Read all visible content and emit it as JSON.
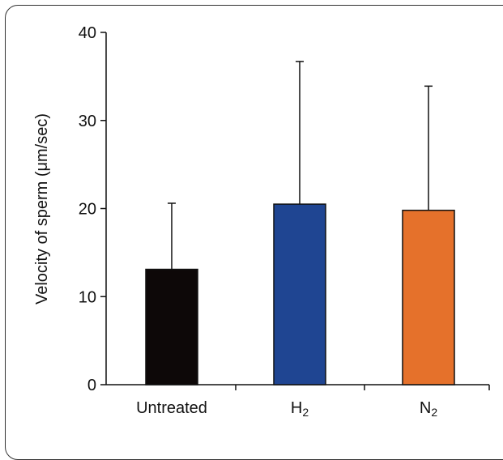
{
  "chart_data": {
    "type": "bar",
    "title": "",
    "xlabel": "",
    "ylabel": "Velocity of sperm (μm/sec)",
    "ylim": [
      0,
      40
    ],
    "yticks": [
      "0",
      "10",
      "20",
      "30",
      "40"
    ],
    "categories": [
      {
        "main": "Untreated",
        "sub": ""
      },
      {
        "main": "H",
        "sub": "2"
      },
      {
        "main": "N",
        "sub": "2"
      }
    ],
    "values": [
      13.1,
      20.5,
      19.8
    ],
    "error_upper": [
      7.5,
      16.2,
      14.1
    ],
    "colors": [
      "#0d0808",
      "#1f4592",
      "#e5712b"
    ],
    "grid": false,
    "legend": "none"
  }
}
